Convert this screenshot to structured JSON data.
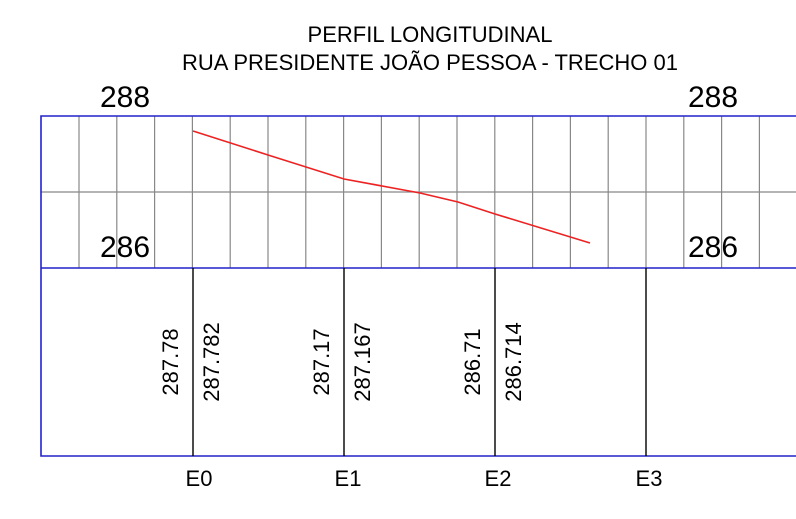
{
  "title": {
    "line1": "PERFIL LONGITUDINAL",
    "line2": "RUA PRESIDENTE JOÃO PESSOA - TRECHO 01"
  },
  "elevation_labels": {
    "top_left": "288",
    "top_right": "288",
    "bottom_left": "286",
    "bottom_right": "286"
  },
  "stations": [
    {
      "label": "E0",
      "terrain": "287.78",
      "design": "287.782"
    },
    {
      "label": "E1",
      "terrain": "287.17",
      "design": "287.167"
    },
    {
      "label": "E2",
      "terrain": "286.71",
      "design": "286.714"
    },
    {
      "label": "E3"
    }
  ]
}
